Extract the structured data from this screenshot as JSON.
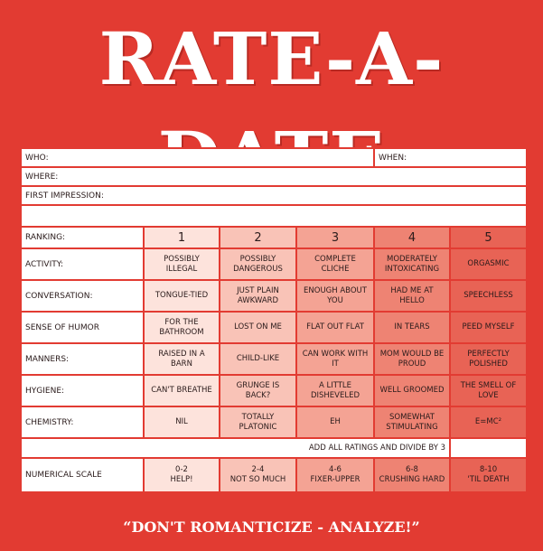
{
  "title": "RATE-A-DATE",
  "info": {
    "who": "WHO:",
    "when": "WHEN:",
    "where": "WHERE:",
    "first_impression": "FIRST IMPRESSION:"
  },
  "header": {
    "label": "RANKING:",
    "ranks": [
      "1",
      "2",
      "3",
      "4",
      "5"
    ]
  },
  "categories": [
    {
      "label": "ACTIVITY:",
      "values": [
        "POSSIBLY ILLEGAL",
        "POSSIBLY DANGEROUS",
        "COMPLETE CLICHE",
        "MODERATELY INTOXICATING",
        "ORGASMIC"
      ]
    },
    {
      "label": "CONVERSATION:",
      "values": [
        "TONGUE-TIED",
        "JUST PLAIN AWKWARD",
        "ENOUGH ABOUT YOU",
        "HAD ME AT HELLO",
        "SPEECHLESS"
      ]
    },
    {
      "label": "SENSE OF HUMOR",
      "values": [
        "FOR THE BATHROOM",
        "LOST ON ME",
        "FLAT OUT FLAT",
        "IN TEARS",
        "PEED MYSELF"
      ]
    },
    {
      "label": "MANNERS:",
      "values": [
        "RAISED IN A BARN",
        "CHILD-LIKE",
        "CAN WORK WITH IT",
        "MOM WOULD BE PROUD",
        "PERFECTLY POLISHED"
      ]
    },
    {
      "label": "HYGIENE:",
      "values": [
        "CAN'T BREATHE",
        "GRUNGE IS BACK?",
        "A LITTLE DISHEVELED",
        "WELL GROOMED",
        "THE SMELL OF LOVE"
      ]
    },
    {
      "label": "CHEMISTRY:",
      "values": [
        "NIL",
        "TOTALLY PLATONIC",
        "EH",
        "SOMEWHAT STIMULATING",
        "E=MC²"
      ]
    }
  ],
  "add_text": "ADD ALL RATINGS AND DIVIDE BY 3",
  "scale": {
    "label": "NUMERICAL SCALE",
    "values": [
      {
        "range": "0-2",
        "desc": "HELP!"
      },
      {
        "range": "2-4",
        "desc": "NOT SO MUCH"
      },
      {
        "range": "4-6",
        "desc": "FIXER-UPPER"
      },
      {
        "range": "6-8",
        "desc": "CRUSHING HARD"
      },
      {
        "range": "8-10",
        "desc": "'TIL DEATH"
      }
    ]
  },
  "footer": "“DON'T ROMANTICIZE - ANALYZE!”"
}
